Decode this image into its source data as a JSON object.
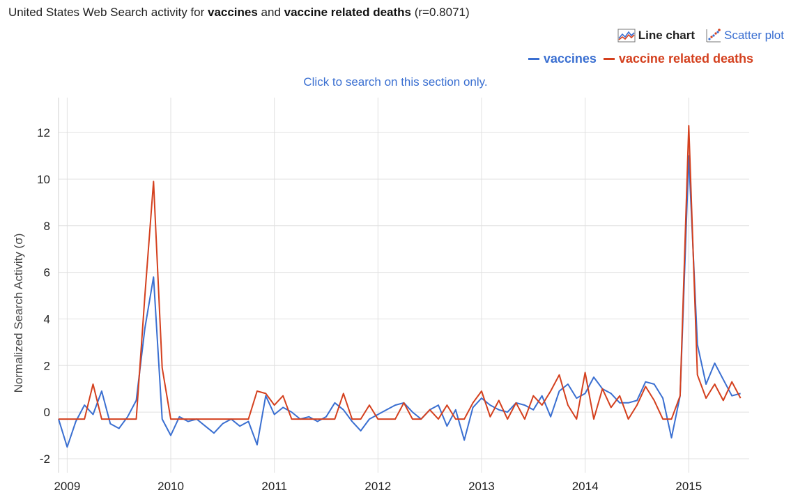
{
  "title": {
    "prefix": "United States Web Search activity for ",
    "term1": "vaccines",
    "and": " and ",
    "term2": "vaccine related deaths",
    "suffix": " (r=0.8071)"
  },
  "view_switch": {
    "line_label": "Line chart",
    "scatter_label": "Scatter plot",
    "line_icon": "line-chart-icon",
    "scatter_icon": "scatter-plot-icon"
  },
  "hint": "Click to search on this section only.",
  "colors": {
    "vaccines": "#3a6fd1",
    "deaths": "#d4401e",
    "grid": "#e0e0e0"
  },
  "chart_data": {
    "type": "line",
    "title": "",
    "xlabel": "",
    "ylabel": "Normalized Search Activity (σ)",
    "x_ticks": [
      "2009",
      "2010",
      "2011",
      "2012",
      "2013",
      "2014",
      "2015"
    ],
    "xlim": [
      "2008-12",
      "2015-08"
    ],
    "y_ticks": [
      -2,
      0,
      2,
      4,
      6,
      8,
      10,
      12
    ],
    "ylim": [
      -2.6,
      13.5
    ],
    "grid": true,
    "legend_position": "top-right",
    "x": [
      "2008-12",
      "2009-01",
      "2009-02",
      "2009-03",
      "2009-04",
      "2009-05",
      "2009-06",
      "2009-07",
      "2009-08",
      "2009-09",
      "2009-10",
      "2009-11",
      "2009-12",
      "2010-01",
      "2010-02",
      "2010-03",
      "2010-04",
      "2010-05",
      "2010-06",
      "2010-07",
      "2010-08",
      "2010-09",
      "2010-10",
      "2010-11",
      "2010-12",
      "2011-01",
      "2011-02",
      "2011-03",
      "2011-04",
      "2011-05",
      "2011-06",
      "2011-07",
      "2011-08",
      "2011-09",
      "2011-10",
      "2011-11",
      "2011-12",
      "2012-01",
      "2012-02",
      "2012-03",
      "2012-04",
      "2012-05",
      "2012-06",
      "2012-07",
      "2012-08",
      "2012-09",
      "2012-10",
      "2012-11",
      "2012-12",
      "2013-01",
      "2013-02",
      "2013-03",
      "2013-04",
      "2013-05",
      "2013-06",
      "2013-07",
      "2013-08",
      "2013-09",
      "2013-10",
      "2013-11",
      "2013-12",
      "2014-01",
      "2014-02",
      "2014-03",
      "2014-04",
      "2014-05",
      "2014-06",
      "2014-07",
      "2014-08",
      "2014-09",
      "2014-10",
      "2014-11",
      "2014-12",
      "2015-01",
      "2015-02",
      "2015-03",
      "2015-04",
      "2015-05",
      "2015-06",
      "2015-07"
    ],
    "series": [
      {
        "name": "vaccines",
        "values": [
          -0.3,
          -1.5,
          -0.4,
          0.3,
          -0.1,
          0.9,
          -0.5,
          -0.7,
          -0.2,
          0.5,
          3.6,
          5.8,
          -0.3,
          -1.0,
          -0.2,
          -0.4,
          -0.3,
          -0.6,
          -0.9,
          -0.5,
          -0.3,
          -0.6,
          -0.4,
          -1.4,
          0.7,
          -0.1,
          0.2,
          0.0,
          -0.3,
          -0.2,
          -0.4,
          -0.2,
          0.4,
          0.1,
          -0.4,
          -0.8,
          -0.3,
          -0.1,
          0.1,
          0.3,
          0.4,
          0.0,
          -0.3,
          0.1,
          0.3,
          -0.6,
          0.1,
          -1.2,
          0.2,
          0.6,
          0.3,
          0.1,
          0.0,
          0.4,
          0.3,
          0.1,
          0.7,
          -0.2,
          0.9,
          1.2,
          0.6,
          0.8,
          1.5,
          1.0,
          0.8,
          0.4,
          0.4,
          0.5,
          1.3,
          1.2,
          0.6,
          -1.1,
          0.7,
          11.0,
          2.9,
          1.2,
          2.1,
          1.4,
          0.7,
          0.8
        ]
      },
      {
        "name": "vaccine related deaths",
        "values": [
          -0.3,
          -0.3,
          -0.3,
          -0.3,
          1.2,
          -0.3,
          -0.3,
          -0.3,
          -0.3,
          -0.3,
          5.0,
          9.9,
          1.9,
          -0.3,
          -0.3,
          -0.3,
          -0.3,
          -0.3,
          -0.3,
          -0.3,
          -0.3,
          -0.3,
          -0.3,
          0.9,
          0.8,
          0.3,
          0.7,
          -0.3,
          -0.3,
          -0.3,
          -0.3,
          -0.3,
          -0.3,
          0.8,
          -0.3,
          -0.3,
          0.3,
          -0.3,
          -0.3,
          -0.3,
          0.4,
          -0.3,
          -0.3,
          0.1,
          -0.3,
          0.3,
          -0.3,
          -0.3,
          0.4,
          0.9,
          -0.2,
          0.5,
          -0.3,
          0.4,
          -0.3,
          0.7,
          0.3,
          0.9,
          1.6,
          0.3,
          -0.3,
          1.7,
          -0.3,
          1.0,
          0.2,
          0.7,
          -0.3,
          0.3,
          1.1,
          0.5,
          -0.3,
          -0.3,
          0.7,
          12.3,
          1.6,
          0.6,
          1.2,
          0.5,
          1.3,
          0.6
        ]
      }
    ]
  }
}
